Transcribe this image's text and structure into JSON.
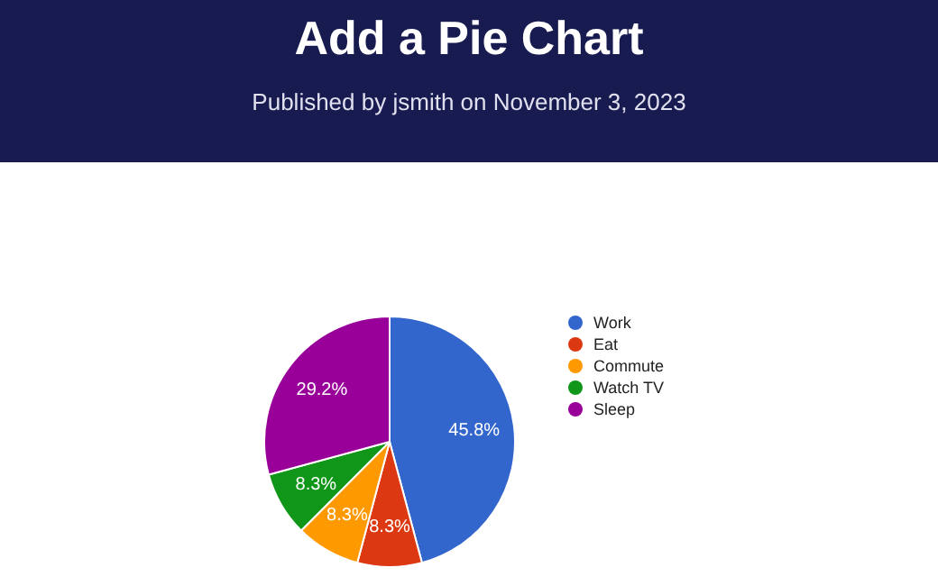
{
  "chart_data": {
    "type": "pie",
    "title": "Add a Pie Chart",
    "subtitle": "Published by jsmith on November 3, 2023",
    "categories": [
      "Work",
      "Eat",
      "Commute",
      "Watch TV",
      "Sleep"
    ],
    "values": [
      45.8,
      8.3,
      8.3,
      8.3,
      29.2
    ],
    "value_labels": [
      "45.8%",
      "8.3%",
      "8.3%",
      "8.3%",
      "29.2%"
    ],
    "colors": [
      "#3366cc",
      "#dc3912",
      "#ff9900",
      "#109618",
      "#990099"
    ],
    "legend": "right"
  }
}
